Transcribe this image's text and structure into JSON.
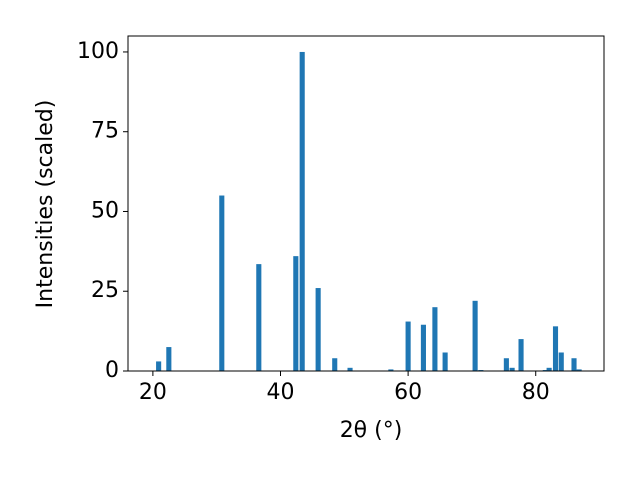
{
  "chart_data": {
    "type": "bar",
    "color": "#1f77b4",
    "x_label": "2θ (°)",
    "y_label": "Intensities (scaled)",
    "x": [
      20.9,
      22.5,
      30.8,
      36.6,
      42.4,
      43.4,
      45.9,
      48.5,
      50.9,
      57.3,
      60.0,
      62.4,
      64.2,
      65.8,
      70.5,
      71.4,
      75.4,
      76.3,
      77.7,
      81.5,
      82.1,
      83.1,
      84.0,
      86.0,
      86.8
    ],
    "values": [
      3,
      7.5,
      55,
      33.5,
      36,
      100,
      26,
      4,
      1,
      0.5,
      15.5,
      14.5,
      20,
      5.8,
      22,
      0.3,
      4,
      1,
      10,
      0.3,
      1,
      14,
      5.8,
      4,
      0.5
    ],
    "xlim": [
      16.1,
      90.7
    ],
    "xticks": [
      20,
      40,
      60,
      80
    ],
    "ylim": [
      0,
      105
    ],
    "yticks": [
      0,
      25,
      50,
      75,
      100
    ]
  }
}
